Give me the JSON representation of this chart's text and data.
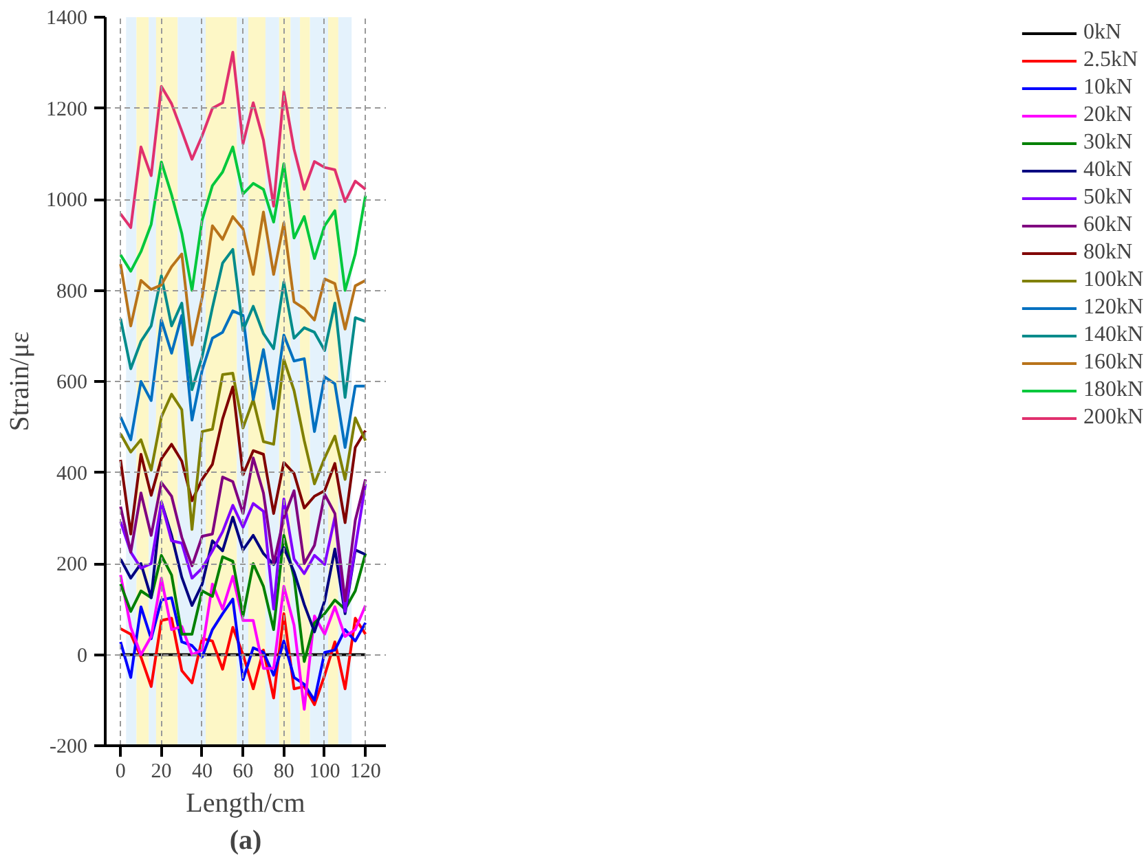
{
  "chart_data": {
    "type": "line",
    "xlabel": "Length/cm",
    "ylabel": "Strain/με",
    "annotations": [
      "(a)"
    ],
    "x": [
      0,
      5,
      10,
      15,
      20,
      25,
      30,
      35,
      40,
      45,
      50,
      55,
      60,
      65,
      70,
      75,
      80,
      85,
      90,
      95,
      100,
      105,
      110,
      115,
      120
    ],
    "xlim": [
      -7.5,
      130
    ],
    "xticks": [
      0,
      20,
      40,
      60,
      80,
      100,
      120
    ],
    "ylim": [
      -200,
      1400
    ],
    "yticks": [
      -200,
      0,
      200,
      400,
      600,
      800,
      1000,
      1200,
      1400
    ],
    "grid": true,
    "legend": "right",
    "line_style": "solid",
    "bands": [
      {
        "axis": "x",
        "from": 2.7,
        "to": 7.8,
        "color": "#e4f2fc"
      },
      {
        "axis": "x",
        "from": 7.8,
        "to": 13.8,
        "color": "#fdf7c6"
      },
      {
        "axis": "x",
        "from": 13.8,
        "to": 17.4,
        "color": "#e4f2fc"
      },
      {
        "axis": "x",
        "from": 17.4,
        "to": 28.0,
        "color": "#fdf7c6"
      },
      {
        "axis": "x",
        "from": 28.0,
        "to": 41.7,
        "color": "#e4f2fc"
      },
      {
        "axis": "x",
        "from": 41.7,
        "to": 57.0,
        "color": "#fdf7c6"
      },
      {
        "axis": "x",
        "from": 57.0,
        "to": 62.6,
        "color": "#e4f2fc"
      },
      {
        "axis": "x",
        "from": 62.6,
        "to": 71.0,
        "color": "#fdf7c6"
      },
      {
        "axis": "x",
        "from": 71.0,
        "to": 77.7,
        "color": "#e4f2fc"
      },
      {
        "axis": "x",
        "from": 77.7,
        "to": 83.3,
        "color": "#fdf7c6"
      },
      {
        "axis": "x",
        "from": 83.3,
        "to": 87.9,
        "color": "#e4f2fc"
      },
      {
        "axis": "x",
        "from": 87.9,
        "to": 92.8,
        "color": "#fdf7c6"
      },
      {
        "axis": "x",
        "from": 92.8,
        "to": 101.7,
        "color": "#e4f2fc"
      },
      {
        "axis": "x",
        "from": 101.7,
        "to": 106.7,
        "color": "#fdf7c6"
      },
      {
        "axis": "x",
        "from": 106.7,
        "to": 113.2,
        "color": "#e4f2fc"
      }
    ],
    "series": [
      {
        "name": "0kN",
        "color": "#000000",
        "values": [
          0,
          0,
          0,
          0,
          0,
          0,
          0,
          0,
          0,
          0,
          0,
          0,
          0,
          0,
          0,
          0,
          0,
          0,
          0,
          0,
          0,
          0,
          0,
          0,
          0
        ]
      },
      {
        "name": "2.5kN",
        "color": "#ff0000",
        "values": [
          57,
          45,
          -5,
          -70,
          75,
          80,
          -35,
          -62,
          35,
          30,
          -32,
          60,
          0,
          -75,
          10,
          -95,
          90,
          -75,
          -70,
          -110,
          -45,
          28,
          -75,
          80,
          45
        ]
      },
      {
        "name": "10kN",
        "color": "#0000ff",
        "values": [
          28,
          -50,
          105,
          35,
          120,
          125,
          28,
          20,
          -5,
          55,
          90,
          122,
          -55,
          15,
          5,
          -45,
          30,
          -50,
          -65,
          -100,
          5,
          10,
          55,
          30,
          70
        ]
      },
      {
        "name": "20kN",
        "color": "#ff00ff",
        "values": [
          175,
          60,
          0,
          40,
          168,
          55,
          62,
          0,
          10,
          155,
          100,
          172,
          75,
          75,
          -30,
          -30,
          150,
          65,
          -120,
          85,
          45,
          105,
          40,
          55,
          108
        ]
      },
      {
        "name": "30kN",
        "color": "#008000",
        "values": [
          155,
          95,
          140,
          125,
          218,
          175,
          45,
          45,
          140,
          128,
          215,
          205,
          85,
          200,
          150,
          55,
          262,
          170,
          -15,
          70,
          90,
          120,
          100,
          140,
          222
        ]
      },
      {
        "name": "40kN",
        "color": "#000080",
        "values": [
          210,
          168,
          200,
          125,
          335,
          262,
          170,
          108,
          155,
          250,
          228,
          302,
          230,
          262,
          222,
          198,
          235,
          182,
          110,
          50,
          118,
          232,
          90,
          230,
          220
        ]
      },
      {
        "name": "50kN",
        "color": "#8000ff",
        "values": [
          292,
          225,
          190,
          200,
          335,
          250,
          245,
          168,
          190,
          228,
          270,
          328,
          280,
          332,
          315,
          100,
          342,
          210,
          178,
          218,
          198,
          302,
          95,
          235,
          375
        ]
      },
      {
        "name": "60kN",
        "color": "#800080",
        "values": [
          325,
          225,
          355,
          262,
          378,
          348,
          258,
          195,
          260,
          265,
          390,
          380,
          310,
          432,
          355,
          200,
          300,
          360,
          200,
          240,
          352,
          310,
          118,
          295,
          385
        ]
      },
      {
        "name": "80kN",
        "color": "#800000",
        "values": [
          428,
          265,
          440,
          350,
          430,
          462,
          425,
          338,
          385,
          418,
          518,
          588,
          395,
          448,
          440,
          310,
          422,
          398,
          322,
          348,
          360,
          420,
          290,
          455,
          492
        ]
      },
      {
        "name": "100kN",
        "color": "#808000",
        "values": [
          485,
          445,
          472,
          405,
          522,
          572,
          538,
          275,
          490,
          495,
          615,
          618,
          498,
          560,
          468,
          462,
          648,
          580,
          470,
          375,
          432,
          480,
          385,
          520,
          470
        ]
      },
      {
        "name": "120kN",
        "color": "#0070c0",
        "values": [
          522,
          472,
          600,
          558,
          735,
          662,
          745,
          515,
          625,
          695,
          708,
          755,
          745,
          560,
          670,
          540,
          702,
          645,
          650,
          490,
          610,
          595,
          455,
          590,
          590
        ]
      },
      {
        "name": "140kN",
        "color": "#008b8b",
        "values": [
          738,
          628,
          688,
          722,
          832,
          722,
          772,
          582,
          655,
          762,
          860,
          890,
          712,
          765,
          705,
          672,
          818,
          695,
          718,
          708,
          668,
          772,
          565,
          740,
          732
        ]
      },
      {
        "name": "160kN",
        "color": "#b8731a",
        "values": [
          858,
          722,
          822,
          802,
          812,
          852,
          880,
          680,
          785,
          942,
          912,
          962,
          935,
          835,
          972,
          835,
          948,
          775,
          760,
          735,
          825,
          815,
          715,
          810,
          822
        ]
      },
      {
        "name": "180kN",
        "color": "#00c83c",
        "values": [
          878,
          842,
          885,
          945,
          1082,
          1010,
          925,
          800,
          955,
          1030,
          1060,
          1115,
          1012,
          1035,
          1022,
          950,
          1078,
          915,
          962,
          870,
          942,
          975,
          800,
          880,
          1008
        ]
      },
      {
        "name": "200kN",
        "color": "#e0306e",
        "values": [
          968,
          938,
          1115,
          1052,
          1248,
          1210,
          1150,
          1088,
          1140,
          1200,
          1212,
          1323,
          1122,
          1212,
          1130,
          985,
          1237,
          1110,
          1022,
          1083,
          1070,
          1065,
          995,
          1040,
          1022
        ]
      }
    ]
  }
}
